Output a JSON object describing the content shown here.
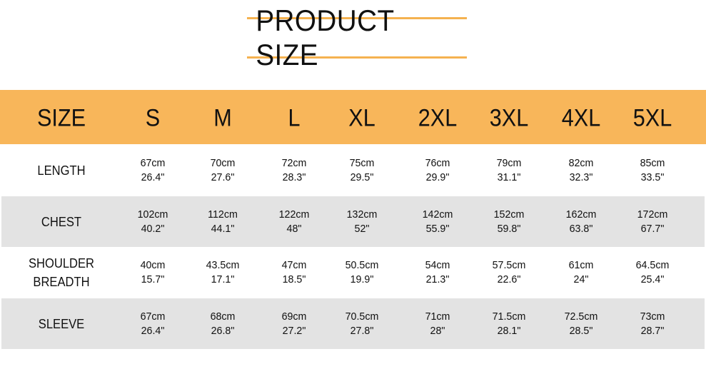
{
  "title": "PRODUCT SIZE",
  "colors": {
    "accent": "#f8b65a",
    "stripe": "#e3e3e3"
  },
  "table": {
    "header_label": "SIZE",
    "sizes": [
      "S",
      "M",
      "L",
      "XL",
      "2XL",
      "3XL",
      "4XL",
      "5XL"
    ],
    "rows": [
      {
        "label": [
          "LENGTH"
        ],
        "values": [
          [
            "67cm",
            "26.4\""
          ],
          [
            "70cm",
            "27.6\""
          ],
          [
            "72cm",
            "28.3\""
          ],
          [
            "75cm",
            "29.5\""
          ],
          [
            "76cm",
            "29.9\""
          ],
          [
            "79cm",
            "31.1\""
          ],
          [
            "82cm",
            "32.3\""
          ],
          [
            "85cm",
            "33.5\""
          ]
        ]
      },
      {
        "label": [
          "CHEST"
        ],
        "values": [
          [
            "102cm",
            "40.2\""
          ],
          [
            "112cm",
            "44.1\""
          ],
          [
            "122cm",
            "48\""
          ],
          [
            "132cm",
            "52\""
          ],
          [
            "142cm",
            "55.9\""
          ],
          [
            "152cm",
            "59.8\""
          ],
          [
            "162cm",
            "63.8\""
          ],
          [
            "172cm",
            "67.7\""
          ]
        ]
      },
      {
        "label": [
          "SHOULDER",
          "BREADTH"
        ],
        "values": [
          [
            "40cm",
            "15.7\""
          ],
          [
            "43.5cm",
            "17.1\""
          ],
          [
            "47cm",
            "18.5\""
          ],
          [
            "50.5cm",
            "19.9\""
          ],
          [
            "54cm",
            "21.3\""
          ],
          [
            "57.5cm",
            "22.6\""
          ],
          [
            "61cm",
            "24\""
          ],
          [
            "64.5cm",
            "25.4\""
          ]
        ]
      },
      {
        "label": [
          "SLEEVE"
        ],
        "values": [
          [
            "67cm",
            "26.4\""
          ],
          [
            "68cm",
            "26.8\""
          ],
          [
            "69cm",
            "27.2\""
          ],
          [
            "70.5cm",
            "27.8\""
          ],
          [
            "71cm",
            "28\""
          ],
          [
            "71.5cm",
            "28.1\""
          ],
          [
            "72.5cm",
            "28.5\""
          ],
          [
            "73cm",
            "28.7\""
          ]
        ]
      }
    ]
  }
}
